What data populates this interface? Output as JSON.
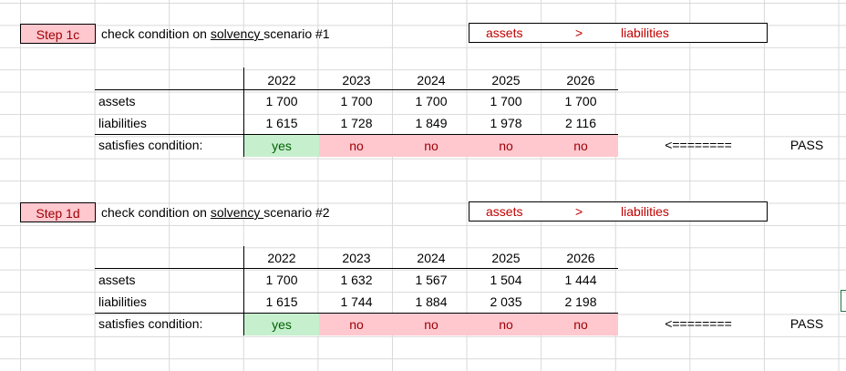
{
  "blocks": [
    {
      "step": "Step 1c",
      "title_prefix": "check condition on ",
      "title_link": "solvency ",
      "title_suffix": " scenario #1",
      "condition": {
        "left": "assets",
        "op": ">",
        "right": "liabilities"
      },
      "years": [
        "2022",
        "2023",
        "2024",
        "2025",
        "2026"
      ],
      "rows": [
        {
          "label": "assets",
          "values": [
            "1 700",
            "1 700",
            "1 700",
            "1 700",
            "1 700"
          ]
        },
        {
          "label": "liabilities",
          "values": [
            "1 615",
            "1 728",
            "1 849",
            "1 978",
            "2 116"
          ]
        }
      ],
      "satisfies_label": "satisfies condition:",
      "satisfies": [
        "yes",
        "no",
        "no",
        "no",
        "no"
      ],
      "arrow": "<========",
      "result": "PASS"
    },
    {
      "step": "Step 1d",
      "title_prefix": "check condition on ",
      "title_link": "solvency ",
      "title_suffix": " scenario #2",
      "condition": {
        "left": "assets",
        "op": ">",
        "right": "liabilities"
      },
      "years": [
        "2022",
        "2023",
        "2024",
        "2025",
        "2026"
      ],
      "rows": [
        {
          "label": "assets",
          "values": [
            "1 700",
            "1 632",
            "1 567",
            "1 504",
            "1 444"
          ]
        },
        {
          "label": "liabilities",
          "values": [
            "1 615",
            "1 744",
            "1 884",
            "2 035",
            "2 198"
          ]
        }
      ],
      "satisfies_label": "satisfies condition:",
      "satisfies": [
        "yes",
        "no",
        "no",
        "no",
        "no"
      ],
      "arrow": "<========",
      "result": "PASS"
    }
  ],
  "colors": {
    "step_fill": "#ffc7ce",
    "step_text": "#9c0006",
    "yes_fill": "#c6efce",
    "yes_text": "#006100",
    "no_fill": "#ffc7ce",
    "no_text": "#9c0006",
    "condition_text": "#c00000"
  }
}
